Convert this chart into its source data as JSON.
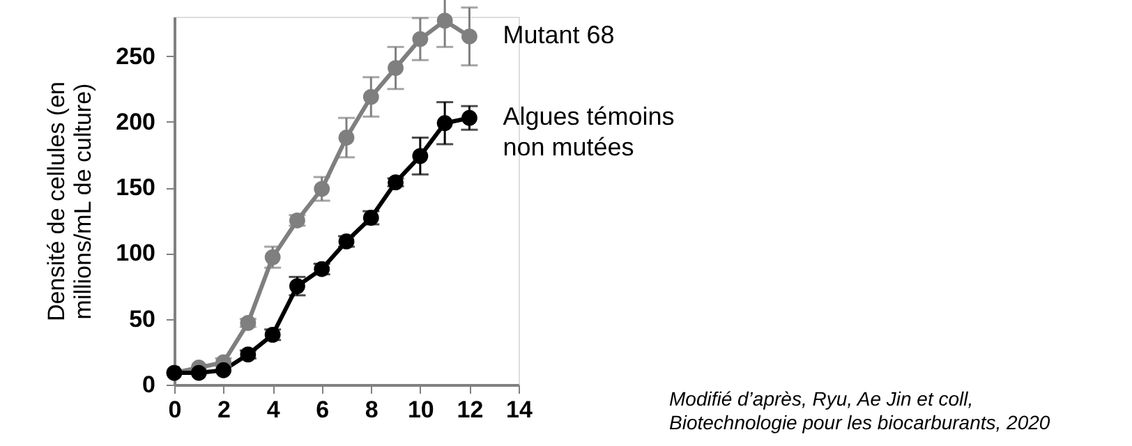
{
  "chart_data": {
    "type": "line",
    "ylabel": "Densité de cellules (en\nmillions/mL de culture)",
    "x": [
      0,
      1,
      2,
      3,
      4,
      5,
      6,
      7,
      8,
      9,
      10,
      11,
      12
    ],
    "series": [
      {
        "name": "Mutant 68",
        "color": "#7f7f7f",
        "values": [
          9,
          13,
          17,
          47,
          97,
          125,
          149,
          188,
          219,
          241,
          263,
          277,
          265
        ],
        "errors": [
          null,
          null,
          3,
          3,
          8,
          4,
          9,
          15,
          15,
          16,
          16,
          20,
          22
        ]
      },
      {
        "name": "Algues témoins\nnon mutées",
        "color": "#000000",
        "values": [
          9,
          9,
          11,
          23,
          38,
          75,
          88,
          109,
          127,
          154,
          174,
          199,
          203
        ],
        "errors": [
          null,
          null,
          null,
          3,
          4,
          7,
          4,
          4,
          5,
          3,
          14,
          16,
          9
        ]
      }
    ],
    "xlim": [
      0,
      14
    ],
    "xticks": [
      0,
      2,
      4,
      6,
      8,
      10,
      12,
      14
    ],
    "ylim": [
      0,
      280
    ],
    "yticks": [
      0,
      50,
      100,
      150,
      200,
      250
    ],
    "grid": false,
    "marker": "circle",
    "line_style": "solid",
    "annotations": [
      "Modifié d’après, Ryu, Ae Jin et coll,\nBiotechnologie pour les biocarburants, 2020"
    ]
  }
}
